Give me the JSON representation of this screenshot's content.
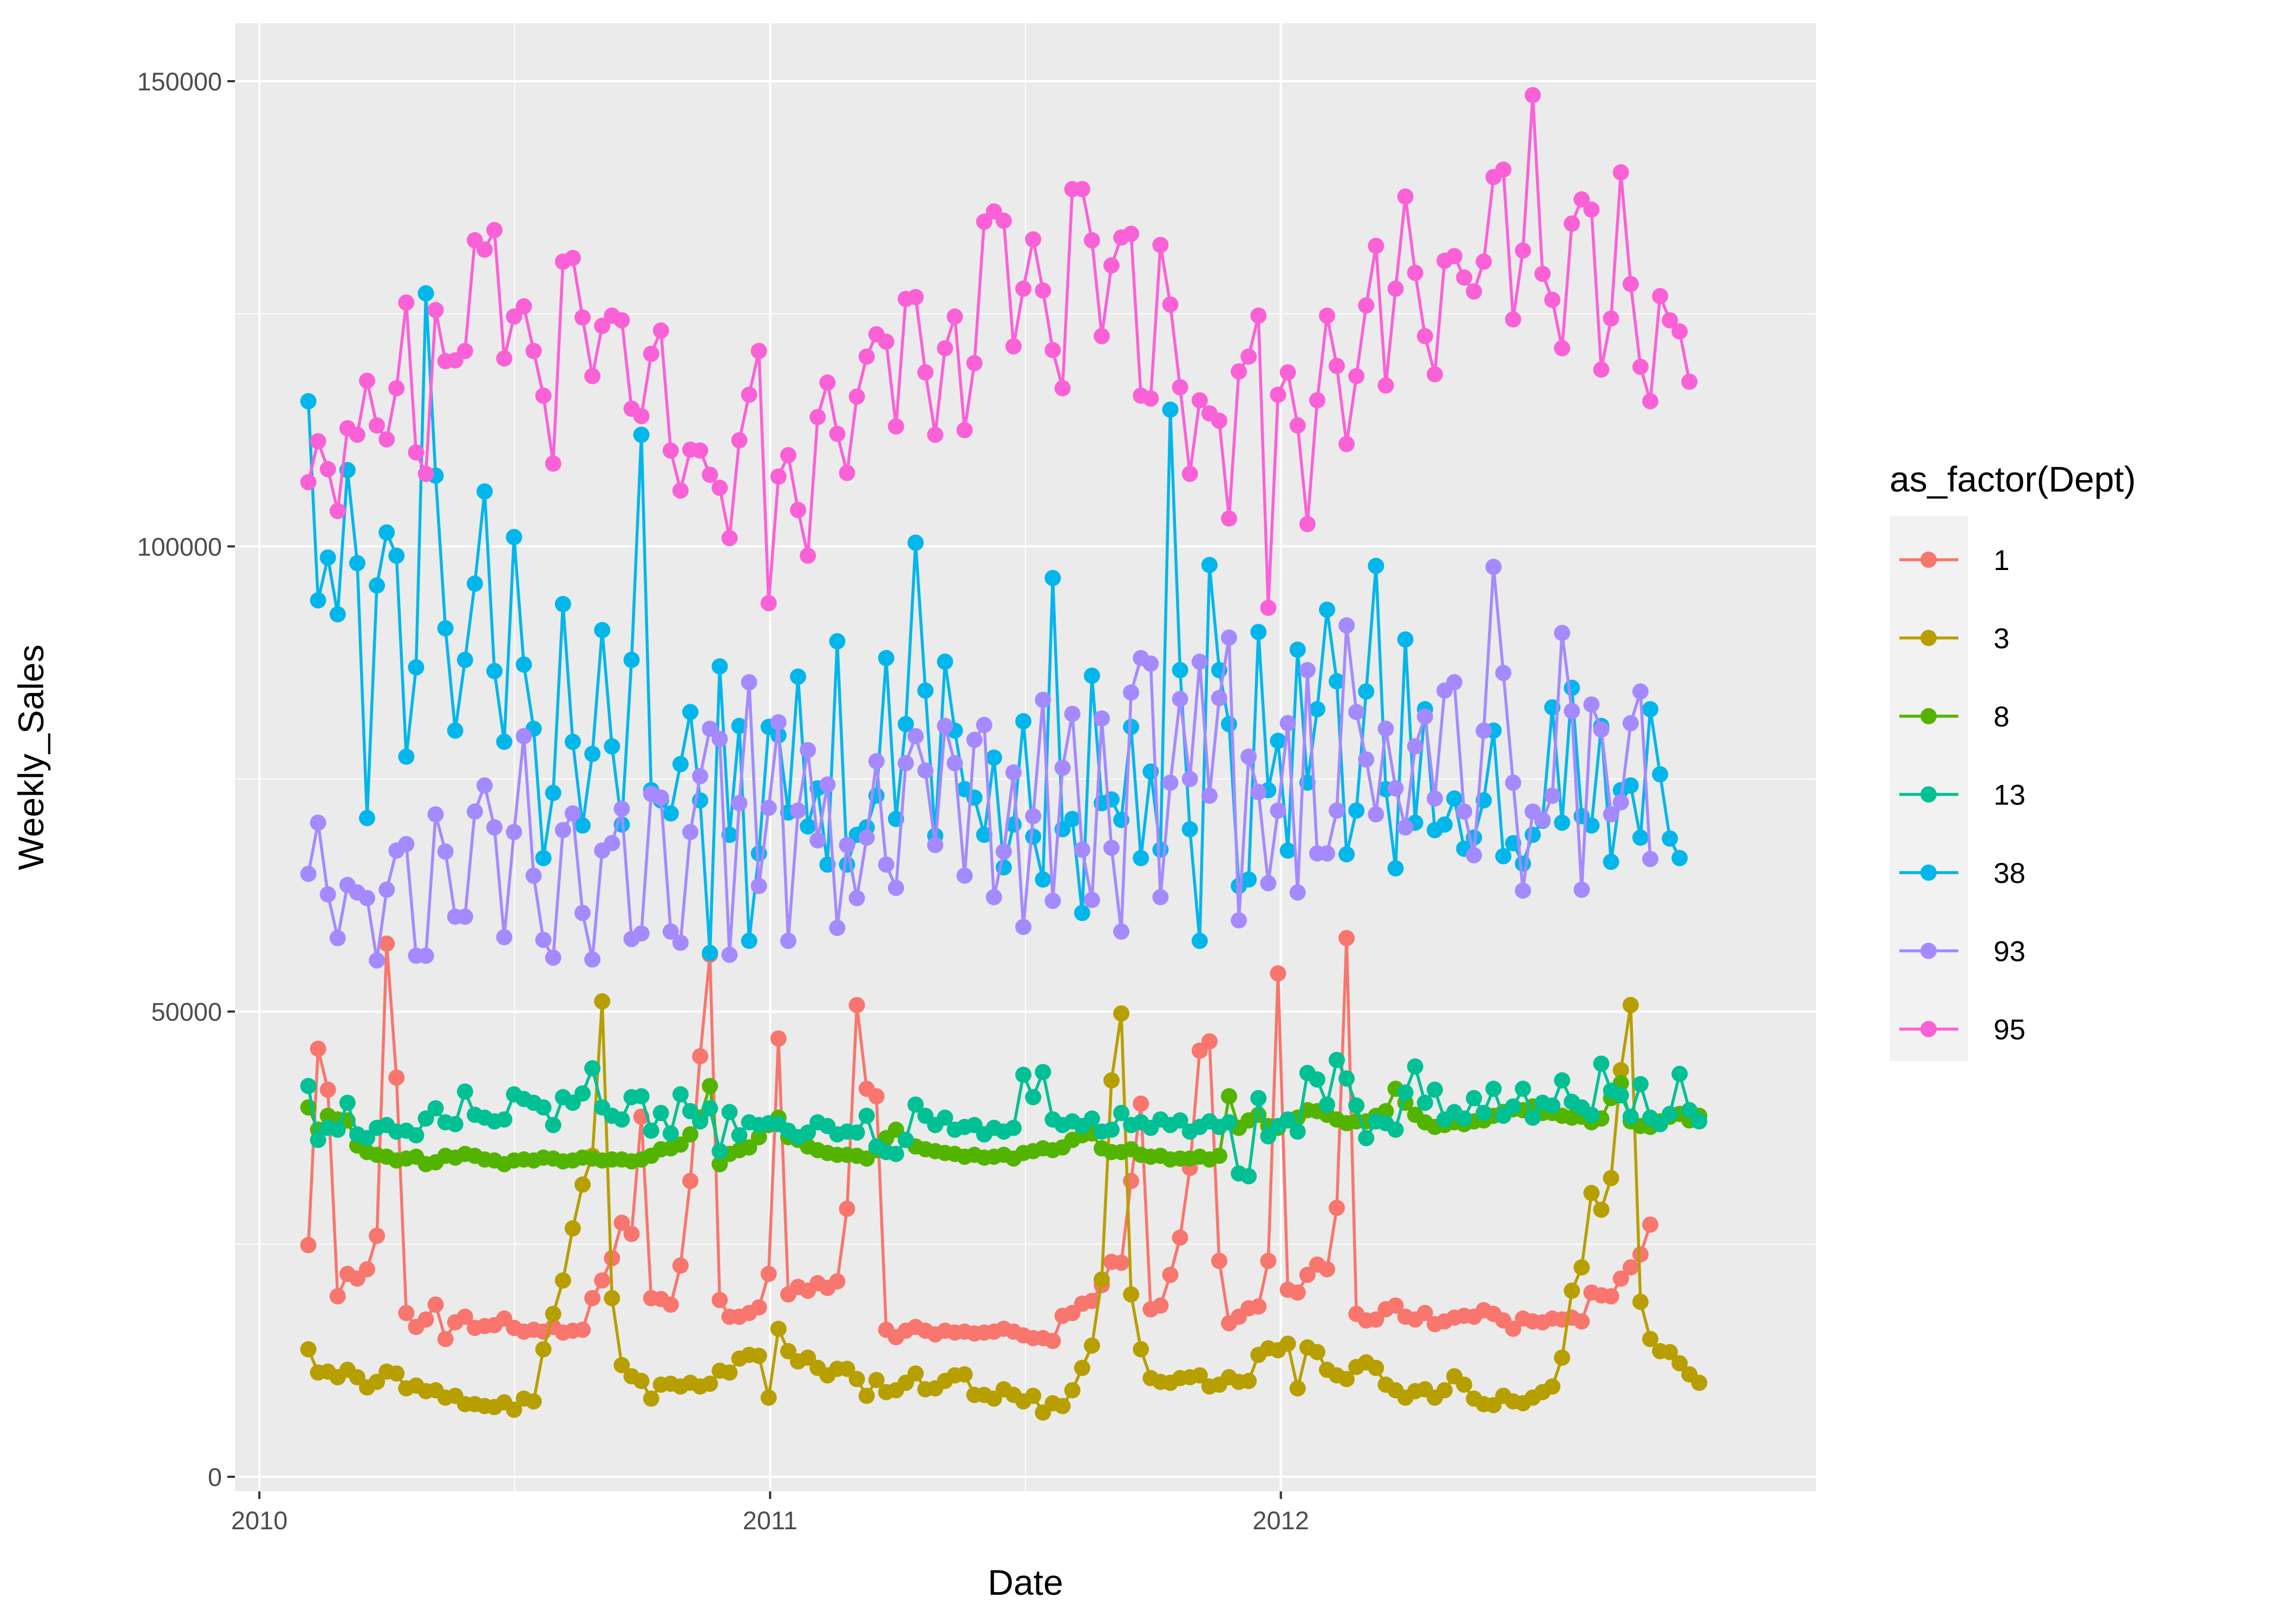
{
  "chart_data": {
    "type": "line",
    "title": "",
    "xlabel": "Date",
    "ylabel": "Weekly_Sales",
    "xlim": [
      "2010-01-01",
      "2012-12-31"
    ],
    "ylim": [
      0,
      150000
    ],
    "x_ticks": [
      "2010",
      "2011",
      "2012"
    ],
    "y_ticks": [
      "0",
      "50000",
      "100000",
      "150000"
    ],
    "grid": true,
    "legend_position": "right",
    "legend_title": "as_factor(Dept)",
    "x_start": "2010-02-05",
    "x_step": "1 week",
    "series": [
      {
        "name": "1",
        "color": "#F8766D",
        "values": [
          24900,
          46000,
          41600,
          19400,
          21800,
          21300,
          22300,
          25900,
          57300,
          42900,
          17600,
          16100,
          16900,
          18500,
          14800,
          16600,
          17200,
          16000,
          16200,
          16300,
          17000,
          16000,
          15600,
          15800,
          15600,
          16100,
          15500,
          15700,
          15800,
          19200,
          21100,
          23500,
          27300,
          26100,
          38700,
          19200,
          19100,
          18500,
          22700,
          31800,
          45200,
          56100,
          19000,
          17200,
          17200,
          17600,
          18200,
          21800,
          47100,
          19600,
          20400,
          20000,
          20800,
          20300,
          21000,
          28800,
          50700,
          41700,
          40900,
          15800,
          15000,
          15700,
          16100,
          15700,
          15300,
          15700,
          15500,
          15600,
          15400,
          15500,
          15600,
          15900,
          15600,
          15200,
          14900,
          14900,
          14600,
          17300,
          17600,
          18600,
          18900,
          20600,
          23100,
          23000,
          31800,
          40100,
          18000,
          18400,
          21700,
          25700,
          33200,
          45800,
          46800,
          23200,
          16500,
          17200,
          18100,
          18300,
          23200,
          54100,
          20100,
          19800,
          21700,
          22800,
          22300,
          28900,
          57900,
          17500,
          16800,
          16900,
          18000,
          18400,
          17200,
          16900,
          17600,
          16400,
          16700,
          17100,
          17300,
          17200,
          17900,
          17500,
          16800,
          15900,
          17000,
          16700,
          16600,
          17000,
          16900,
          17100,
          16700,
          19800,
          19500,
          19400,
          21300,
          22500,
          23900,
          27100
        ]
      },
      {
        "name": "3",
        "color": "#B79F00",
        "values": [
          13700,
          11200,
          11300,
          10700,
          11500,
          10700,
          9600,
          10200,
          11300,
          11100,
          9500,
          9800,
          9200,
          9300,
          8500,
          8700,
          7800,
          7800,
          7600,
          7500,
          8000,
          7200,
          8400,
          8100,
          13700,
          17500,
          21100,
          26700,
          31400,
          34500,
          51100,
          19200,
          12000,
          10800,
          10300,
          8400,
          9900,
          10000,
          9700,
          10100,
          9700,
          10000,
          11400,
          11200,
          12700,
          13100,
          13000,
          8500,
          15900,
          13500,
          12400,
          12800,
          11700,
          10900,
          11600,
          11600,
          10500,
          8700,
          10400,
          9100,
          9300,
          10100,
          11100,
          9400,
          9500,
          10300,
          10900,
          11000,
          8800,
          8800,
          8400,
          9400,
          8800,
          8100,
          8700,
          6900,
          7900,
          7600,
          9300,
          11700,
          14100,
          21200,
          42600,
          49800,
          19600,
          13700,
          10600,
          10200,
          10100,
          10600,
          10700,
          10900,
          9700,
          9900,
          10700,
          10200,
          10300,
          13100,
          13800,
          13600,
          14300,
          9500,
          13900,
          13400,
          11500,
          10900,
          10500,
          11800,
          12300,
          11700,
          9900,
          9300,
          8500,
          9200,
          9400,
          8500,
          9300,
          10800,
          9900,
          8400,
          7800,
          7700,
          8700,
          8100,
          7900,
          8500,
          9100,
          9700,
          12800,
          20000,
          22500,
          30500,
          28700,
          32100,
          43700,
          50700,
          18800,
          14800,
          13500,
          13400,
          12200,
          11000,
          10100
        ]
      },
      {
        "name": "8",
        "color": "#53B400",
        "values": [
          39700,
          37300,
          38800,
          38400,
          38300,
          35600,
          34900,
          34600,
          34400,
          34000,
          34200,
          34400,
          33600,
          33800,
          34500,
          34300,
          34700,
          34500,
          34100,
          34000,
          33600,
          34000,
          34100,
          34000,
          34300,
          34200,
          33900,
          34000,
          34300,
          34200,
          34000,
          34100,
          34100,
          33900,
          34100,
          34500,
          35200,
          35300,
          35700,
          36800,
          38600,
          42000,
          33600,
          34700,
          35100,
          35400,
          36500,
          37800,
          38600,
          36500,
          36200,
          35500,
          35100,
          34800,
          34600,
          34600,
          34500,
          34200,
          35100,
          36400,
          37300,
          36200,
          35500,
          35200,
          35000,
          34800,
          34700,
          34400,
          34600,
          34300,
          34400,
          34600,
          34200,
          34800,
          35000,
          35300,
          35100,
          35400,
          36200,
          36700,
          36900,
          35300,
          34900,
          34900,
          35200,
          34600,
          34400,
          34500,
          34100,
          34200,
          34200,
          34400,
          34100,
          34500,
          40900,
          37500,
          38300,
          38900,
          37700,
          37500,
          38300,
          38600,
          39400,
          39300,
          38900,
          38400,
          38000,
          38200,
          38200,
          38800,
          39300,
          41700,
          40200,
          38900,
          38100,
          37600,
          37800,
          38100,
          37900,
          38200,
          38300,
          38800,
          39200,
          39500,
          39400,
          39800,
          39100,
          39100,
          38800,
          38600,
          38700,
          38100,
          38500,
          40700,
          42300,
          38200,
          37700,
          37600,
          38200,
          38700,
          39000,
          38300,
          38800
        ]
      },
      {
        "name": "13",
        "color": "#00C094",
        "values": [
          42000,
          36200,
          37500,
          37300,
          40200,
          36800,
          36400,
          37500,
          37800,
          37100,
          37200,
          36700,
          38500,
          39600,
          38100,
          37900,
          41400,
          38900,
          38600,
          38200,
          38400,
          41100,
          40600,
          40200,
          39700,
          37800,
          40800,
          40200,
          41200,
          43900,
          39700,
          38800,
          38400,
          40800,
          40900,
          37200,
          39100,
          36900,
          41100,
          39300,
          38200,
          39600,
          35000,
          39200,
          36700,
          38100,
          37800,
          38000,
          37900,
          37200,
          36500,
          37000,
          38100,
          37700,
          36800,
          37100,
          37000,
          38800,
          35500,
          34900,
          34700,
          36200,
          40000,
          38800,
          37800,
          38600,
          37300,
          37600,
          37800,
          36800,
          37500,
          37100,
          37500,
          43200,
          40800,
          43500,
          38400,
          37800,
          38200,
          37700,
          38500,
          37100,
          37300,
          39100,
          37800,
          38100,
          37500,
          38400,
          37800,
          38300,
          37100,
          37600,
          38200,
          37600,
          38100,
          32600,
          32300,
          40700,
          36600,
          37700,
          38400,
          37100,
          43400,
          42700,
          40000,
          44800,
          42800,
          39900,
          36400,
          38200,
          38000,
          37300,
          41300,
          44100,
          40200,
          41600,
          38400,
          39200,
          38500,
          40700,
          39100,
          41700,
          38800,
          39800,
          41700,
          38600,
          40200,
          39900,
          42600,
          40300,
          39700,
          38900,
          44400,
          41500,
          41000,
          38700,
          42200,
          38600,
          37900,
          39000,
          43300,
          39400,
          38200
        ]
      },
      {
        "name": "38",
        "color": "#00B6EB",
        "values": [
          115600,
          94200,
          98800,
          92700,
          108200,
          98200,
          70800,
          95800,
          101500,
          99000,
          77400,
          87000,
          127200,
          107600,
          91200,
          80200,
          87800,
          96000,
          105900,
          86600,
          79000,
          101000,
          87300,
          80400,
          66500,
          73500,
          93800,
          79000,
          70000,
          77700,
          91000,
          78500,
          70100,
          87800,
          112000,
          73800,
          72700,
          71300,
          76600,
          82200,
          72700,
          56300,
          87100,
          69000,
          80700,
          57600,
          67000,
          80600,
          79700,
          71400,
          86000,
          69900,
          74000,
          65800,
          89800,
          65800,
          69000,
          69800,
          73200,
          88000,
          70700,
          80900,
          100400,
          84500,
          68900,
          87600,
          80200,
          73900,
          73000,
          69000,
          77300,
          65500,
          70100,
          81200,
          68800,
          64200,
          96600,
          69600,
          70700,
          60600,
          86100,
          72400,
          72800,
          70600,
          80600,
          66500,
          75800,
          67400,
          114700,
          86700,
          69600,
          57600,
          98000,
          86700,
          80900,
          63500,
          64200,
          90800,
          73800,
          79100,
          67300,
          88900,
          74600,
          82500,
          93200,
          85500,
          66900,
          71600,
          84400,
          97900,
          73900,
          65400,
          90000,
          70300,
          82500,
          69500,
          70100,
          72900,
          67500,
          68700,
          72700,
          80200,
          66700,
          68100,
          65900,
          69000,
          70500,
          82700,
          70300,
          84800,
          71000,
          70000,
          80700,
          66100,
          73800,
          74300,
          68700,
          82500,
          75500,
          68600,
          66500
        ]
      },
      {
        "name": "93",
        "color": "#A58AFF",
        "values": [
          64800,
          70300,
          62600,
          57900,
          63600,
          62800,
          62200,
          55500,
          63100,
          67300,
          68000,
          56000,
          56000,
          71200,
          67200,
          60200,
          60200,
          71500,
          74300,
          69800,
          58000,
          69300,
          79600,
          64600,
          57700,
          55800,
          69500,
          71300,
          60600,
          55600,
          67300,
          68100,
          71800,
          57800,
          58400,
          73400,
          73000,
          58600,
          57400,
          69300,
          75300,
          80400,
          79300,
          56100,
          72400,
          85400,
          63500,
          71900,
          81100,
          57600,
          71600,
          78100,
          68400,
          74400,
          59000,
          67900,
          62200,
          68700,
          76900,
          65800,
          63300,
          76700,
          79600,
          75900,
          67900,
          80700,
          76700,
          64600,
          79200,
          80800,
          62300,
          67200,
          75700,
          59100,
          71000,
          83500,
          61900,
          76200,
          82000,
          67400,
          62000,
          81500,
          67600,
          58600,
          84300,
          88000,
          87400,
          62300,
          74600,
          83600,
          75000,
          87600,
          73200,
          83700,
          90200,
          59800,
          77400,
          73600,
          63800,
          71600,
          81000,
          62800,
          86700,
          67000,
          67000,
          71600,
          91500,
          82200,
          77100,
          71200,
          80400,
          74000,
          69800,
          78500,
          81700,
          72900,
          84500,
          85400,
          71500,
          66800,
          80200,
          97800,
          86400,
          74600,
          63000,
          71500,
          70600,
          73200,
          90700,
          82300,
          63100,
          83000,
          80300,
          71200,
          72500,
          81000,
          84400,
          66400
        ]
      },
      {
        "name": "95",
        "color": "#FB61D7",
        "values": [
          106900,
          111300,
          108300,
          103800,
          112700,
          112000,
          117800,
          113000,
          111500,
          117000,
          126200,
          110100,
          107800,
          125400,
          119900,
          120000,
          121000,
          132900,
          131900,
          134000,
          120200,
          124700,
          125800,
          121000,
          116200,
          108900,
          130600,
          131000,
          124600,
          118300,
          123700,
          124800,
          124300,
          114800,
          114000,
          120700,
          123200,
          110300,
          106000,
          110400,
          110300,
          107700,
          106300,
          100900,
          111400,
          116300,
          121000,
          93900,
          107500,
          109800,
          103900,
          99000,
          113900,
          117600,
          112100,
          107900,
          116100,
          120400,
          122800,
          122000,
          112900,
          126600,
          126800,
          118700,
          112000,
          121300,
          124700,
          112500,
          119700,
          134900,
          136000,
          135000,
          121500,
          127700,
          133000,
          127500,
          121100,
          117000,
          138400,
          138400,
          132900,
          122600,
          130200,
          133200,
          133600,
          116200,
          115900,
          132400,
          126000,
          117100,
          107800,
          115700,
          114300,
          113500,
          103000,
          118800,
          120400,
          124800,
          93400,
          116300,
          118700,
          113000,
          102400,
          115700,
          124800,
          119400,
          111000,
          118300,
          125900,
          132300,
          117300,
          127700,
          137600,
          129400,
          122600,
          118500,
          130700,
          131200,
          128900,
          127400,
          130600,
          139700,
          140500,
          124400,
          131800,
          148500,
          129300,
          126500,
          121300,
          134700,
          137300,
          136200,
          119000,
          124500,
          140200,
          128200,
          119300,
          115600,
          126900,
          124300,
          123100,
          117700
        ]
      }
    ]
  }
}
